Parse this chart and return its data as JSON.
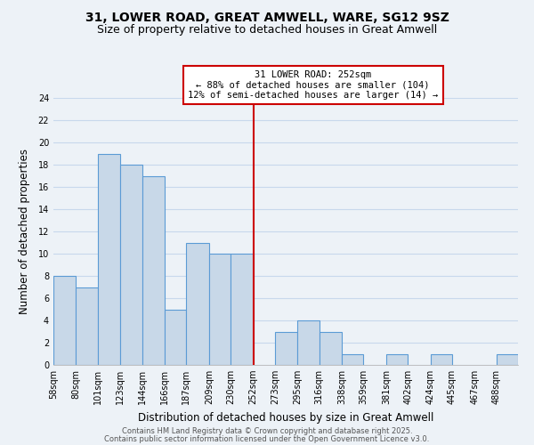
{
  "title": "31, LOWER ROAD, GREAT AMWELL, WARE, SG12 9SZ",
  "subtitle": "Size of property relative to detached houses in Great Amwell",
  "xlabel": "Distribution of detached houses by size in Great Amwell",
  "ylabel": "Number of detached properties",
  "bin_labels": [
    "58sqm",
    "80sqm",
    "101sqm",
    "123sqm",
    "144sqm",
    "166sqm",
    "187sqm",
    "209sqm",
    "230sqm",
    "252sqm",
    "273sqm",
    "295sqm",
    "316sqm",
    "338sqm",
    "359sqm",
    "381sqm",
    "402sqm",
    "424sqm",
    "445sqm",
    "467sqm",
    "488sqm"
  ],
  "bin_edges": [
    58,
    80,
    101,
    123,
    144,
    166,
    187,
    209,
    230,
    252,
    273,
    295,
    316,
    338,
    359,
    381,
    402,
    424,
    445,
    467,
    488,
    509
  ],
  "counts": [
    8,
    7,
    19,
    18,
    17,
    5,
    11,
    10,
    10,
    0,
    3,
    4,
    3,
    1,
    0,
    1,
    0,
    1,
    0,
    0,
    1
  ],
  "bar_color": "#c8d8e8",
  "bar_edge_color": "#5b9bd5",
  "reference_line_x": 252,
  "reference_line_color": "#cc0000",
  "annotation_line1": "31 LOWER ROAD: 252sqm",
  "annotation_line2": "← 88% of detached houses are smaller (104)",
  "annotation_line3": "12% of semi-detached houses are larger (14) →",
  "annotation_box_edge_color": "#cc0000",
  "annotation_box_face_color": "#ffffff",
  "ylim": [
    0,
    24
  ],
  "yticks": [
    0,
    2,
    4,
    6,
    8,
    10,
    12,
    14,
    16,
    18,
    20,
    22,
    24
  ],
  "grid_color": "#c8d8ec",
  "bg_color": "#edf2f7",
  "footer_line1": "Contains HM Land Registry data © Crown copyright and database right 2025.",
  "footer_line2": "Contains public sector information licensed under the Open Government Licence v3.0.",
  "title_fontsize": 10,
  "subtitle_fontsize": 9,
  "xlabel_fontsize": 8.5,
  "ylabel_fontsize": 8.5,
  "tick_fontsize": 7,
  "annotation_fontsize": 7.5,
  "footer_fontsize": 6
}
